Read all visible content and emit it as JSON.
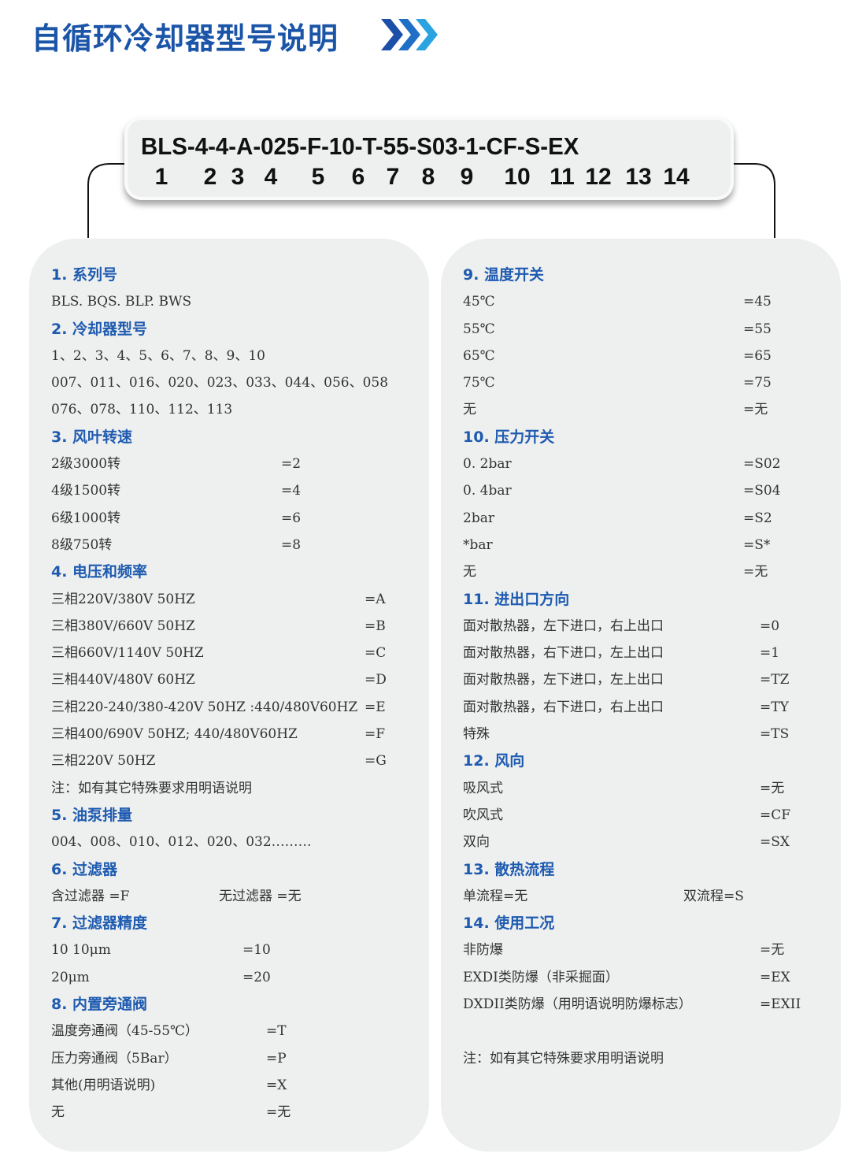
{
  "title": "自循环冷却器型号说明",
  "title_icon": "triple-chevron-right-icon",
  "colors": {
    "accent": "#1e5bb0",
    "panel": "#eeefef",
    "chevron_dark": "#1b4fa8",
    "chevron_light": "#2aa3e0"
  },
  "model": {
    "code": "BLS-4-4-A-025-F-10-T-55-S03-1-CF-S-EX",
    "positions": [
      "1",
      "2",
      "3",
      "4",
      "5",
      "6",
      "7",
      "8",
      "9",
      "10",
      "11",
      "12",
      "13",
      "14"
    ]
  },
  "left_sections": [
    {
      "heading": "1. 系列号",
      "rows": [
        {
          "label": "BLS. BQS. BLP. BWS"
        }
      ]
    },
    {
      "heading": "2. 冷却器型号",
      "rows": [
        {
          "label": "1、2、3、4、5、6、7、8、9、10"
        },
        {
          "label": "007、011、016、020、023、033、044、056、058"
        },
        {
          "label": "076、078、110、112、113"
        }
      ]
    },
    {
      "heading": "3. 风叶转速",
      "rows": [
        {
          "label": "2级3000转",
          "value": "=2"
        },
        {
          "label": "4级1500转",
          "value": "=4"
        },
        {
          "label": "6级1000转",
          "value": "=6"
        },
        {
          "label": "8级750转",
          "value": "=8"
        }
      ]
    },
    {
      "heading": "4. 电压和频率",
      "rows": [
        {
          "label": "三相220V/380V 50HZ",
          "value": "=A"
        },
        {
          "label": "三相380V/660V 50HZ",
          "value": "=B"
        },
        {
          "label": "三相660V/1140V 50HZ",
          "value": "=C"
        },
        {
          "label": "三相440V/480V  60HZ",
          "value": "=D"
        },
        {
          "label": "三相220-240/380-420V 50HZ :440/480V60HZ",
          "value": "=E"
        },
        {
          "label": "三相400/690V 50HZ; 440/480V60HZ",
          "value": "=F"
        },
        {
          "label": "三相220V 50HZ",
          "value": "=G"
        },
        {
          "label": "注：如有其它特殊要求用明语说明"
        }
      ]
    },
    {
      "heading": "5. 油泵排量",
      "rows": [
        {
          "label": "004、008、010、012、020、032………"
        }
      ]
    },
    {
      "heading": "6. 过滤器",
      "rows": [
        {
          "label": "含过滤器 =F",
          "value": "无过滤器 =无"
        }
      ]
    },
    {
      "heading": "7. 过滤器精度",
      "rows": [
        {
          "label": "10    10μm",
          "value": "=10"
        },
        {
          "label": "20μm",
          "value": "=20"
        }
      ]
    },
    {
      "heading": "8. 内置旁通阀",
      "rows": [
        {
          "label": "温度旁通阀（45-55℃）",
          "value": "=T"
        },
        {
          "label": "压力旁通阀（5Bar）",
          "value": "=P"
        },
        {
          "label": "其他(用明语说明)",
          "value": "=X"
        },
        {
          "label": "无",
          "value": "=无"
        }
      ]
    }
  ],
  "right_sections": [
    {
      "heading": "9. 温度开关",
      "rows": [
        {
          "label": "45℃",
          "value": "=45"
        },
        {
          "label": "55℃",
          "value": "=55"
        },
        {
          "label": "65℃",
          "value": "=65"
        },
        {
          "label": "75℃",
          "value": "=75"
        },
        {
          "label": "无",
          "value": "=无"
        }
      ]
    },
    {
      "heading": "10. 压力开关",
      "rows": [
        {
          "label": "0. 2bar",
          "value": "=S02"
        },
        {
          "label": "0. 4bar",
          "value": "=S04"
        },
        {
          "label": "2bar",
          "value": "=S2"
        },
        {
          "label": "*bar",
          "value": "=S*"
        },
        {
          "label": "无",
          "value": "=无"
        }
      ]
    },
    {
      "heading": "11. 进出口方向",
      "rows": [
        {
          "label": "面对散热器，左下进口，右上出口",
          "value": "=0"
        },
        {
          "label": "面对散热器，右下进口，左上出口",
          "value": "=1"
        },
        {
          "label": "面对散热器，左下进口，左上出口",
          "value": "=TZ"
        },
        {
          "label": "面对散热器，右下进口，右上出口",
          "value": "=TY"
        },
        {
          "label": "特殊",
          "value": "=TS"
        }
      ]
    },
    {
      "heading": "12. 风向",
      "rows": [
        {
          "label": "吸风式",
          "value": "=无"
        },
        {
          "label": "吹风式",
          "value": "=CF"
        },
        {
          "label": "双向",
          "value": "=SX"
        }
      ]
    },
    {
      "heading": "13. 散热流程",
      "rows": [
        {
          "label": "单流程=无",
          "value": "双流程=S"
        }
      ]
    },
    {
      "heading": "14. 使用工况",
      "rows": [
        {
          "label": "非防爆",
          "value": "=无"
        },
        {
          "label": "EXDI类防爆（非采掘面）",
          "value": "=EX"
        },
        {
          "label": "DXDII类防爆（用明语说明防爆标志）",
          "value": "=EXII"
        },
        {
          "label": ""
        },
        {
          "label": "注：如有其它特殊要求用明语说明"
        }
      ]
    }
  ]
}
